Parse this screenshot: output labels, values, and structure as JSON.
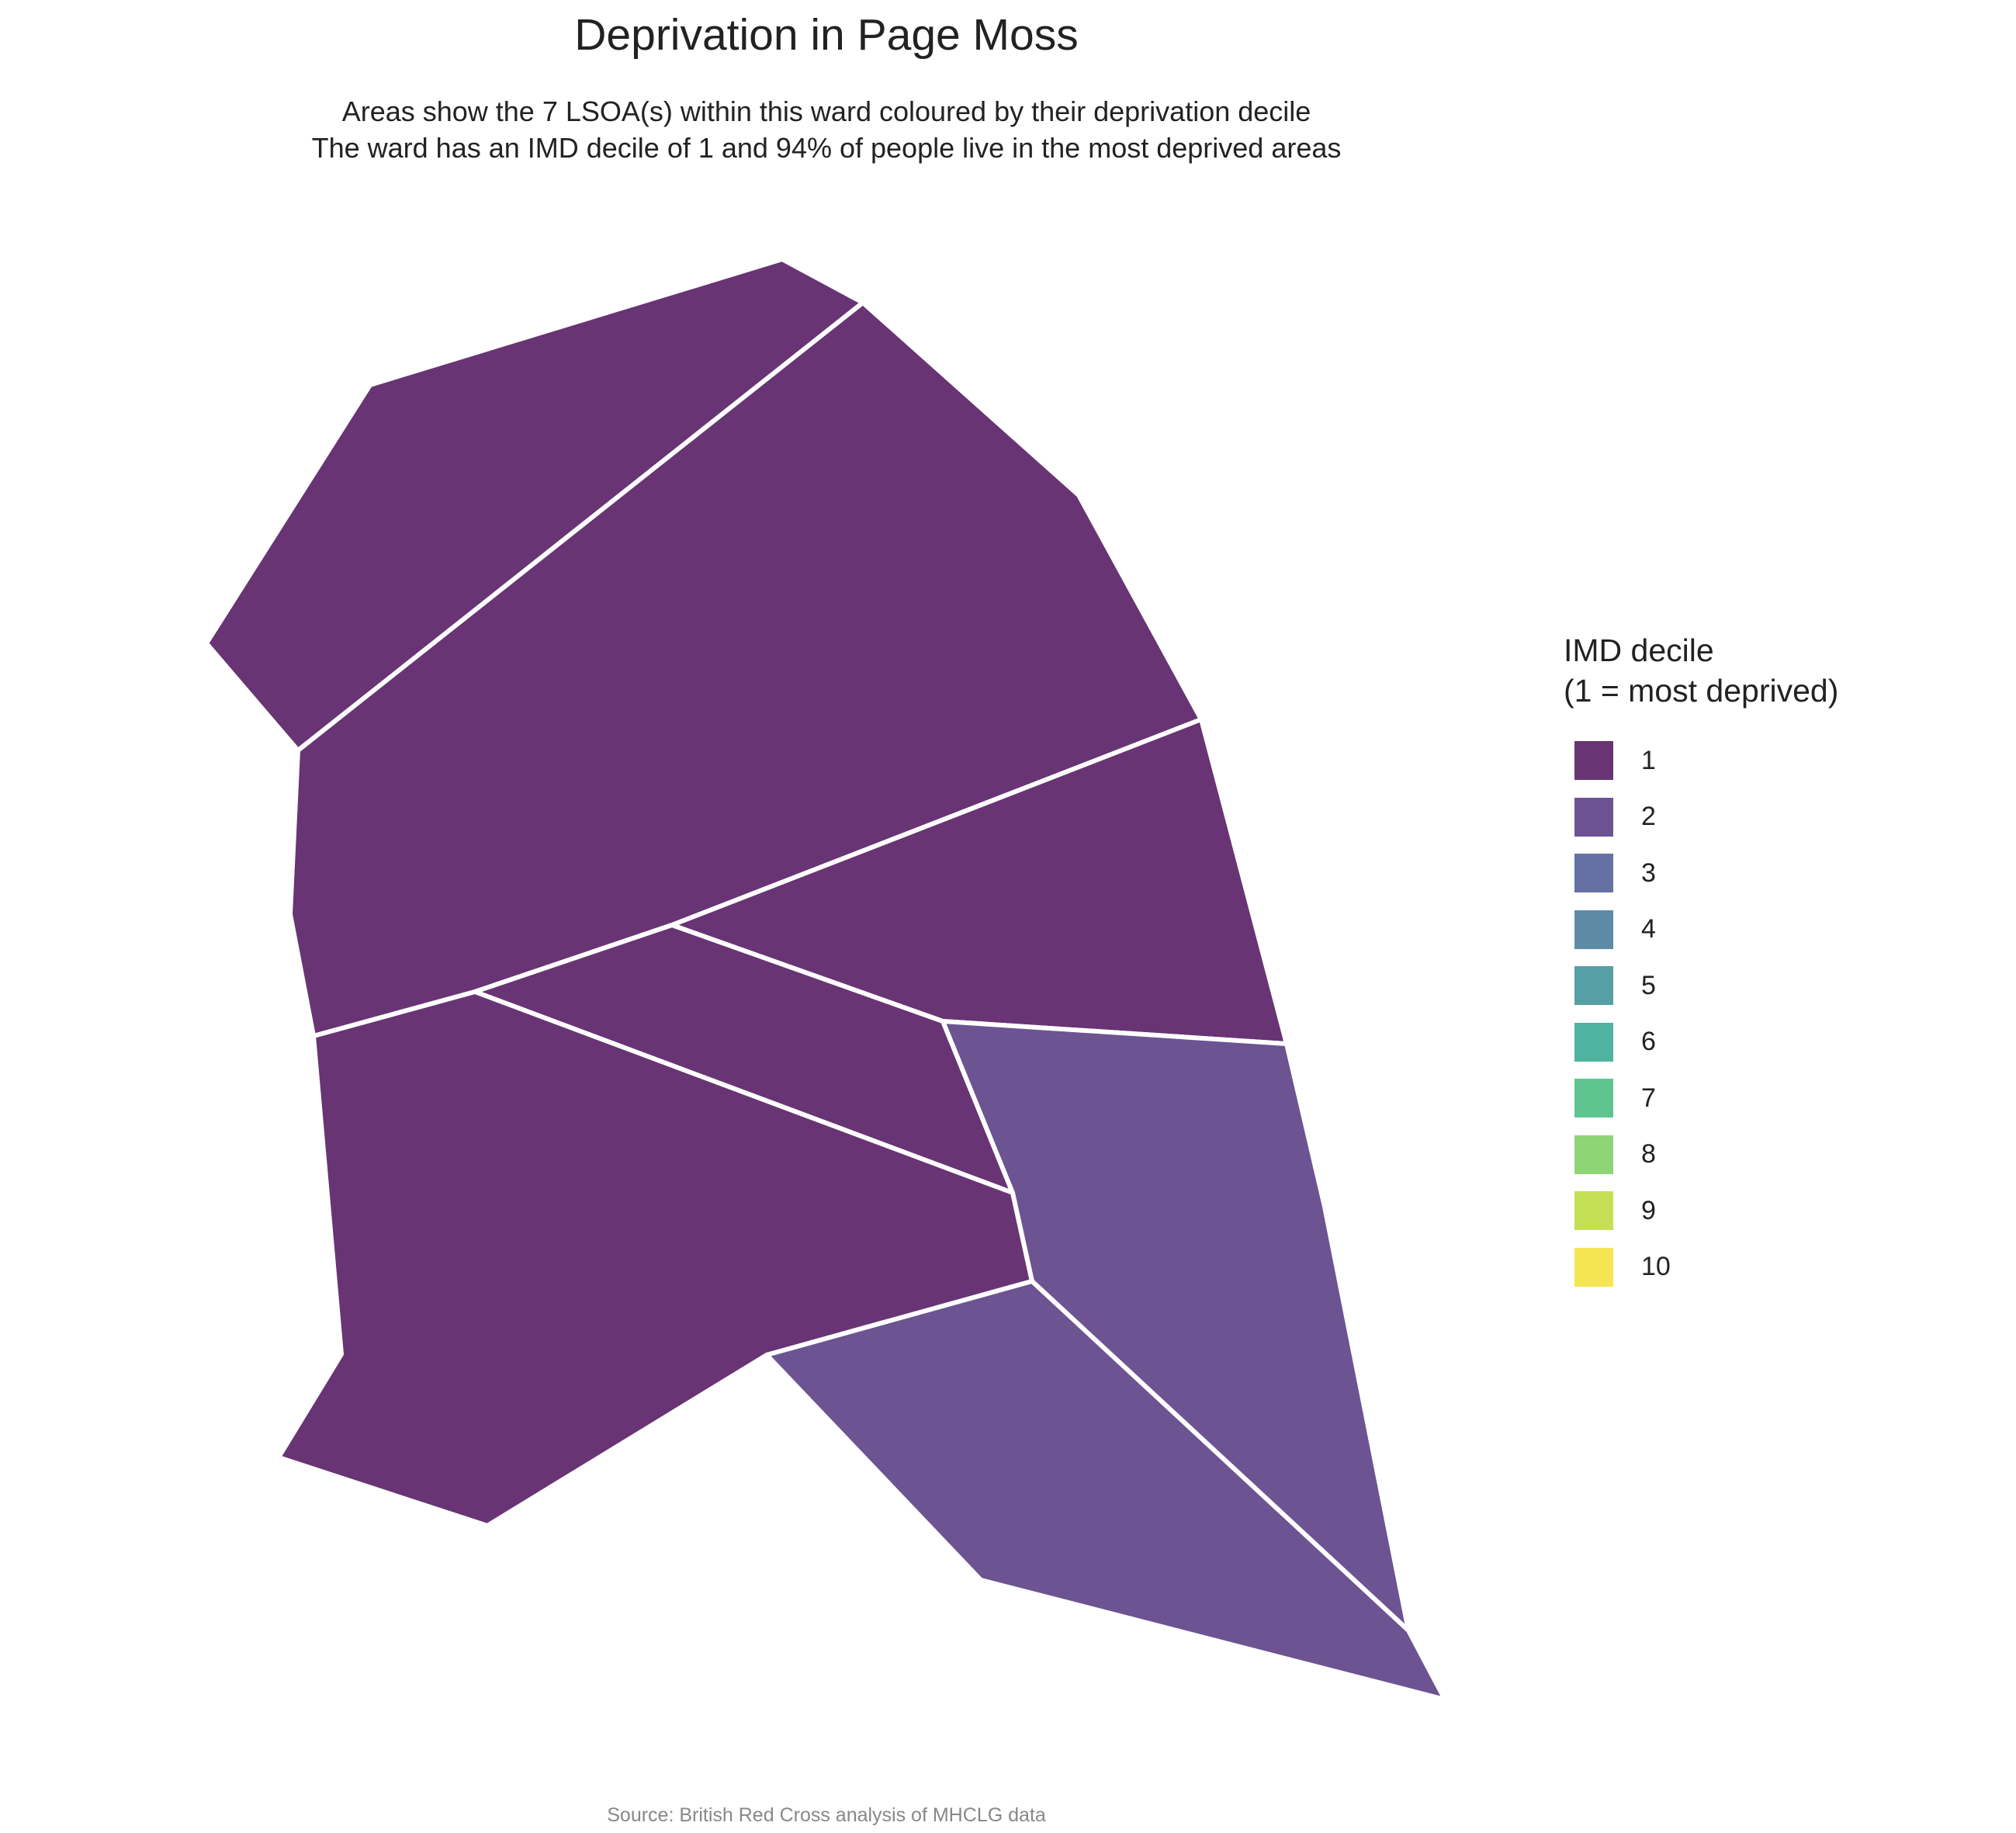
{
  "title": "Deprivation in Page Moss",
  "subtitle_lines": [
    "Areas show the 7 LSOA(s) within this ward coloured by their deprivation decile",
    "The ward has an IMD decile of 1 and 94% of people live in the most deprived areas"
  ],
  "legend": {
    "title_lines": [
      "IMD decile",
      "(1 = most deprived)"
    ],
    "items": [
      {
        "label": "1",
        "color": "#683474"
      },
      {
        "label": "2",
        "color": "#6C5392"
      },
      {
        "label": "3",
        "color": "#6571A2"
      },
      {
        "label": "4",
        "color": "#5D8BA6"
      },
      {
        "label": "5",
        "color": "#559FA5"
      },
      {
        "label": "6",
        "color": "#4EB39F"
      },
      {
        "label": "7",
        "color": "#5EC490"
      },
      {
        "label": "8",
        "color": "#8FD475"
      },
      {
        "label": "9",
        "color": "#C6E056"
      },
      {
        "label": "10",
        "color": "#F6E552"
      }
    ]
  },
  "areas": [
    {
      "decile": 1,
      "color": "#683474"
    },
    {
      "decile": 1,
      "color": "#683474"
    },
    {
      "decile": 1,
      "color": "#683474"
    },
    {
      "decile": 1,
      "color": "#683474"
    },
    {
      "decile": 1,
      "color": "#683474"
    },
    {
      "decile": 2,
      "color": "#6C5392"
    },
    {
      "decile": 2,
      "color": "#6C5392"
    }
  ],
  "caption": "Source: British Red Cross analysis of MHCLG data"
}
